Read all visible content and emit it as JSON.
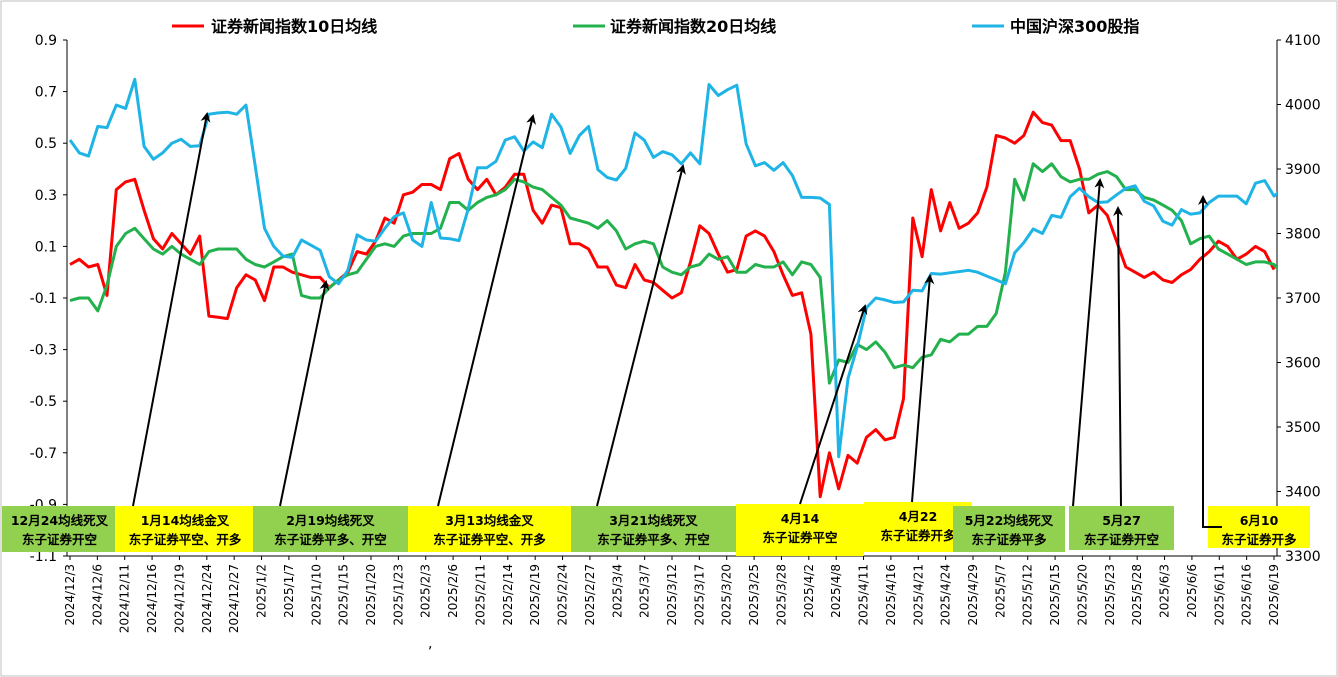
{
  "chart_data": {
    "type": "line",
    "colors": {
      "ma10": "#ff0000",
      "ma20": "#22b14c",
      "csi300": "#1fb4e6",
      "box_green": "#92d050",
      "box_yellow": "#ffff00"
    },
    "y_left": {
      "min": -1.1,
      "max": 0.9,
      "ticks": [
        "0.9",
        "0.7",
        "0.5",
        "0.3",
        "0.1",
        "-0.1",
        "-0.3",
        "-0.5",
        "-0.7",
        "-0.9",
        "-1.1"
      ]
    },
    "y_right": {
      "min": 3300,
      "max": 4100,
      "ticks": [
        "4100",
        "4000",
        "3900",
        "3800",
        "3700",
        "3600",
        "3500",
        "3400",
        "3300"
      ]
    },
    "x_ticks": [
      "2024/12/3",
      "2024/12/6",
      "2024/12/11",
      "2024/12/16",
      "2024/12/19",
      "2024/12/24",
      "2024/12/27",
      "2025/1/2",
      "2025/1/7",
      "2025/1/10",
      "2025/1/15",
      "2025/1/20",
      "2025/1/23",
      "2025/2/3",
      "2025/2/6",
      "2025/2/11",
      "2025/2/14",
      "2025/2/19",
      "2025/2/24",
      "2025/2/27",
      "2025/3/4",
      "2025/3/7",
      "2025/3/12",
      "2025/3/17",
      "2025/3/20",
      "2025/3/25",
      "2025/3/28",
      "2025/4/2",
      "2025/4/8",
      "2025/4/11",
      "2025/4/16",
      "2025/4/21",
      "2025/4/24",
      "2025/4/29",
      "2025/5/7",
      "2025/5/12",
      "2025/5/15",
      "2025/5/20",
      "2025/5/23",
      "2025/5/28",
      "2025/6/3",
      "2025/6/6",
      "2025/6/11",
      "2025/6/16",
      "2025/6/19"
    ],
    "stray_mark": ",",
    "series": [
      {
        "name": "证券新闻指数10日均线",
        "axis": "left",
        "color": "#ff0000",
        "values": [
          0.03,
          0.05,
          0.02,
          0.03,
          -0.09,
          0.32,
          0.35,
          0.36,
          0.24,
          0.13,
          0.09,
          0.15,
          0.11,
          0.07,
          0.14,
          -0.17,
          -0.175,
          -0.18,
          -0.06,
          -0.01,
          -0.03,
          -0.11,
          0.02,
          0.02,
          0.0,
          -0.01,
          -0.02,
          -0.02,
          -0.06,
          -0.03,
          0.0,
          0.08,
          0.07,
          0.12,
          0.21,
          0.19,
          0.3,
          0.31,
          0.34,
          0.34,
          0.32,
          0.44,
          0.46,
          0.36,
          0.32,
          0.36,
          0.3,
          0.33,
          0.38,
          0.38,
          0.24,
          0.19,
          0.26,
          0.25,
          0.11,
          0.11,
          0.09,
          0.02,
          0.02,
          -0.05,
          -0.06,
          0.03,
          -0.03,
          -0.04,
          -0.07,
          -0.1,
          -0.08,
          0.04,
          0.18,
          0.15,
          0.07,
          0.0,
          0.01,
          0.14,
          0.16,
          0.14,
          0.08,
          -0.01,
          -0.09,
          -0.08,
          -0.24,
          -0.87,
          -0.7,
          -0.84,
          -0.71,
          -0.74,
          -0.64,
          -0.61,
          -0.65,
          -0.64,
          -0.49,
          0.21,
          0.06,
          0.32,
          0.16,
          0.27,
          0.17,
          0.19,
          0.23,
          0.33,
          0.53,
          0.52,
          0.5,
          0.53,
          0.62,
          0.58,
          0.57,
          0.51,
          0.51,
          0.4,
          0.23,
          0.26,
          0.22,
          0.12,
          0.02,
          0.0,
          -0.02,
          0.0,
          -0.03,
          -0.04,
          -0.01,
          0.01,
          0.05,
          0.08,
          0.12,
          0.1,
          0.05,
          0.07,
          0.1,
          0.08,
          0.01
        ]
      },
      {
        "name": "证券新闻指数20日均线",
        "axis": "left",
        "color": "#22b14c",
        "values": [
          -0.11,
          -0.1,
          -0.1,
          -0.15,
          -0.05,
          0.1,
          0.15,
          0.17,
          0.13,
          0.09,
          0.07,
          0.1,
          0.07,
          0.05,
          0.03,
          0.08,
          0.09,
          0.09,
          0.09,
          0.05,
          0.03,
          0.02,
          0.04,
          0.06,
          0.07,
          -0.09,
          -0.1,
          -0.1,
          -0.06,
          -0.03,
          -0.01,
          0.0,
          0.05,
          0.1,
          0.11,
          0.1,
          0.14,
          0.15,
          0.15,
          0.15,
          0.17,
          0.27,
          0.27,
          0.24,
          0.27,
          0.29,
          0.3,
          0.32,
          0.36,
          0.35,
          0.33,
          0.32,
          0.29,
          0.26,
          0.21,
          0.2,
          0.19,
          0.17,
          0.2,
          0.16,
          0.09,
          0.11,
          0.12,
          0.11,
          0.02,
          0.0,
          -0.01,
          0.02,
          0.03,
          0.07,
          0.05,
          0.06,
          0.0,
          0.0,
          0.03,
          0.02,
          0.02,
          0.04,
          -0.01,
          0.04,
          0.03,
          -0.02,
          -0.43,
          -0.34,
          -0.35,
          -0.28,
          -0.3,
          -0.27,
          -0.31,
          -0.37,
          -0.36,
          -0.37,
          -0.33,
          -0.32,
          -0.26,
          -0.27,
          -0.24,
          -0.24,
          -0.21,
          -0.21,
          -0.16,
          0.0,
          0.36,
          0.28,
          0.42,
          0.39,
          0.42,
          0.37,
          0.35,
          0.36,
          0.36,
          0.38,
          0.39,
          0.37,
          0.32,
          0.32,
          0.29,
          0.28,
          0.26,
          0.24,
          0.2,
          0.11,
          0.13,
          0.14,
          0.09,
          0.07,
          0.05,
          0.03,
          0.04,
          0.04,
          0.03,
          -0.01
        ]
      },
      {
        "name": "中国沪深300股指",
        "axis": "right",
        "color": "#1fb4e6",
        "values": [
          3945,
          3925,
          3920,
          3966,
          3964,
          3999,
          3994,
          4039,
          3935,
          3915,
          3925,
          3940,
          3946,
          3935,
          3936,
          3985,
          3987,
          3988,
          3985,
          3999,
          3905,
          3808,
          3780,
          3765,
          3763,
          3790,
          3782,
          3774,
          3733,
          3722,
          3743,
          3798,
          3790,
          3788,
          3808,
          3826,
          3832,
          3790,
          3780,
          3848,
          3793,
          3792,
          3789,
          3838,
          3902,
          3902,
          3912,
          3945,
          3950,
          3928,
          3942,
          3933,
          3985,
          3965,
          3924,
          3952,
          3966,
          3899,
          3887,
          3883,
          3901,
          3956,
          3945,
          3918,
          3927,
          3922,
          3908,
          3925,
          3908,
          4031,
          4014,
          4023,
          4030,
          3939,
          3905,
          3910,
          3898,
          3910,
          3890,
          3856,
          3856,
          3855,
          3845,
          3454,
          3575,
          3624,
          3685,
          3700,
          3697,
          3693,
          3694,
          3712,
          3711,
          3738,
          3737,
          3739,
          3741,
          3743,
          3740,
          3734,
          3728,
          3722,
          3770,
          3786,
          3807,
          3800,
          3828,
          3825,
          3857,
          3870,
          3857,
          3848,
          3849,
          3860,
          3870,
          3874,
          3850,
          3843,
          3819,
          3813,
          3837,
          3830,
          3832,
          3848,
          3858,
          3858,
          3858,
          3846,
          3878,
          3882,
          3858,
          3870,
          3870,
          3870,
          3873
        ]
      }
    ],
    "legend": [
      {
        "label": "证券新闻指数10日均线",
        "color": "#ff0000"
      },
      {
        "label": "证券新闻指数20日均线",
        "color": "#22b14c"
      },
      {
        "label": "中国沪深300股指",
        "color": "#1fb4e6"
      }
    ],
    "annotations": [
      {
        "id": "a1",
        "color": "#92d050",
        "line1": "12月24均线死叉",
        "line2": "东子证券开空",
        "idx": 28,
        "tip_series": 2
      },
      {
        "id": "a2",
        "color": "#ffff00",
        "line1": "1月14均线金叉",
        "line2": "东子证券平空、开多",
        "idx": 15,
        "tip_series": 2
      },
      {
        "id": "a3",
        "color": "#92d050",
        "line1": "2月19均线死叉",
        "line2": "东子证券平多、开空",
        "idx": 28,
        "tip_series": 2
      },
      {
        "id": "a4",
        "color": "#ffff00",
        "line1": "3月13均线金叉",
        "line2": "东子证券平空、开多",
        "idx": 50,
        "tip_series": 2
      },
      {
        "id": "a5",
        "color": "#92d050",
        "line1": "3月21均线死叉",
        "line2": "东子证券平多、开空",
        "idx": 66,
        "tip_series": 2
      },
      {
        "id": "a6",
        "color": "#ffff00",
        "line1": "4月14",
        "line2": "东子证券平空",
        "idx": 89,
        "tip_series": 2
      },
      {
        "id": "a7",
        "color": "#ffff00",
        "line1": "4月22",
        "line2": "东子证券开多",
        "idx": 94,
        "tip_series": 2
      },
      {
        "id": "a8",
        "color": "#92d050",
        "line1": "5月22均线死叉",
        "line2": "东子证券平多",
        "idx": 114,
        "tip_series": 2
      },
      {
        "id": "a9",
        "color": "#92d050",
        "line1": "5月27",
        "line2": "东子证券开空",
        "idx": 117,
        "tip_series": 2
      },
      {
        "id": "a10",
        "color": "#ffff00",
        "line1": "6月10",
        "line2": "东子证券开多",
        "idx": 123,
        "tip_series": 2
      }
    ]
  }
}
